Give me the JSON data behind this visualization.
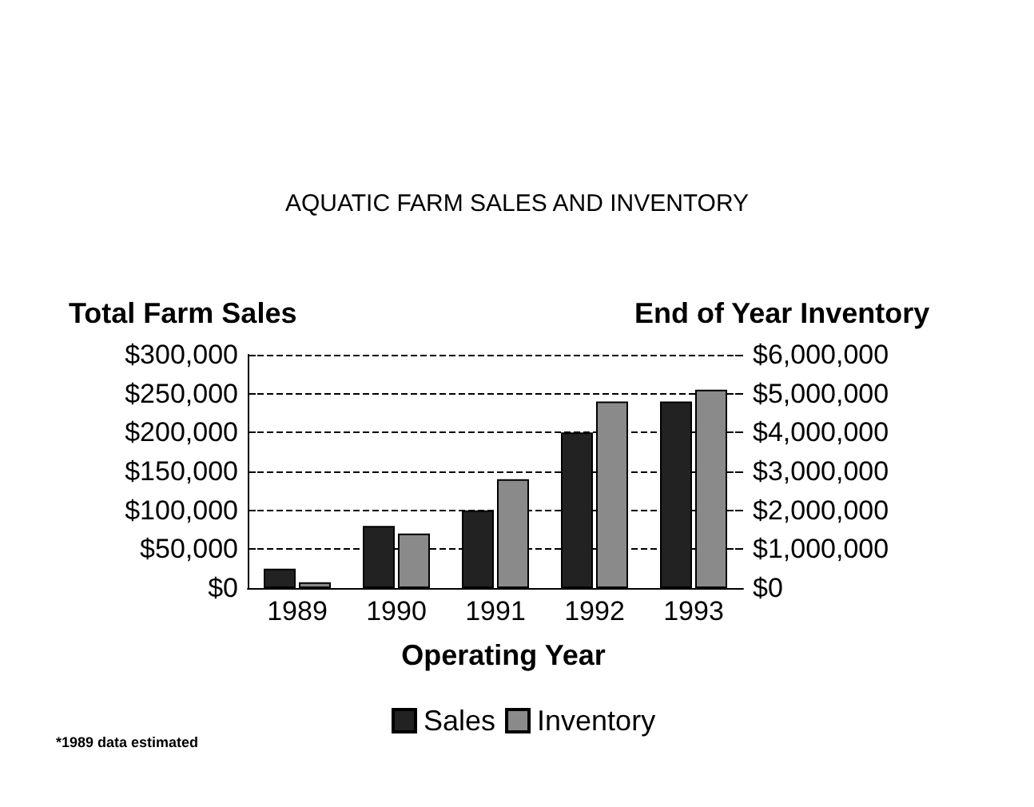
{
  "chart_data": {
    "type": "bar",
    "title": "AQUATIC FARM SALES AND INVENTORY",
    "xlabel": "Operating Year",
    "ylabel": "Total Farm Sales",
    "y2label": "End of Year Inventory",
    "categories": [
      "1989",
      "1990",
      "1991",
      "1992",
      "1993"
    ],
    "series": [
      {
        "name": "Sales",
        "color": "#222222",
        "values": [
          25000,
          80000,
          100000,
          200000,
          240000
        ]
      },
      {
        "name": "Inventory",
        "color": "#8a8a8a",
        "axis": "y2",
        "values": [
          150000,
          1400000,
          2800000,
          4800000,
          5100000
        ]
      }
    ],
    "ylim": [
      0,
      300000
    ],
    "yticks": [
      {
        "value": 0,
        "label": "$0"
      },
      {
        "value": 50000,
        "label": "$50,000"
      },
      {
        "value": 100000,
        "label": "$100,000"
      },
      {
        "value": 150000,
        "label": "$150,000"
      },
      {
        "value": 200000,
        "label": "$200,000"
      },
      {
        "value": 250000,
        "label": "$250,000"
      },
      {
        "value": 300000,
        "label": "$300,000"
      }
    ],
    "y2lim": [
      0,
      6000000
    ],
    "y2ticks": [
      {
        "value": 0,
        "label": "$0"
      },
      {
        "value": 1000000,
        "label": "$1,000,000"
      },
      {
        "value": 2000000,
        "label": "$2,000,000"
      },
      {
        "value": 3000000,
        "label": "$3,000,000"
      },
      {
        "value": 4000000,
        "label": "$4,000,000"
      },
      {
        "value": 5000000,
        "label": "$5,000,000"
      },
      {
        "value": 6000000,
        "label": "$6,000,000"
      }
    ],
    "grid": "y",
    "line_style": "dashed",
    "legend": "bottom",
    "annotations": [
      "*1989 data estimated"
    ]
  }
}
